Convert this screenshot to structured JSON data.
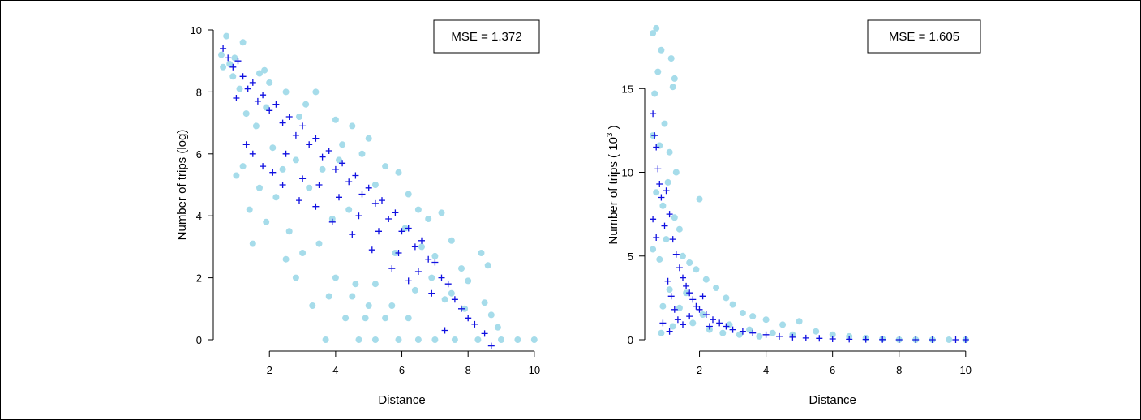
{
  "colors": {
    "observed": "#a6dcea",
    "predicted": "#1010e0",
    "axis": "#000000"
  },
  "chart_data": [
    {
      "type": "scatter",
      "xlabel": "Distance",
      "ylabel": "Number of trips (log)",
      "annotation": "MSE = 1.372",
      "xlim": [
        0.5,
        10.2
      ],
      "ylim": [
        0,
        10
      ],
      "xticks": [
        2,
        4,
        6,
        8,
        10
      ],
      "yticks": [
        0,
        2,
        4,
        6,
        8,
        10
      ],
      "series": [
        {
          "marker": "circle",
          "points": [
            [
              0.55,
              9.2
            ],
            [
              0.7,
              9.8
            ],
            [
              1.2,
              9.6
            ],
            [
              0.95,
              9.1
            ],
            [
              1.7,
              8.6
            ],
            [
              2.0,
              8.3
            ],
            [
              1.85,
              8.7
            ],
            [
              2.5,
              8.0
            ],
            [
              3.1,
              7.6
            ],
            [
              3.4,
              8.0
            ],
            [
              2.9,
              7.2
            ],
            [
              4.0,
              7.1
            ],
            [
              4.5,
              6.9
            ],
            [
              4.2,
              6.3
            ],
            [
              5.0,
              6.5
            ],
            [
              4.8,
              6.0
            ],
            [
              5.5,
              5.6
            ],
            [
              5.9,
              5.4
            ],
            [
              5.2,
              5.0
            ],
            [
              6.2,
              4.7
            ],
            [
              6.5,
              4.2
            ],
            [
              6.8,
              3.9
            ],
            [
              7.2,
              4.1
            ],
            [
              7.5,
              3.2
            ],
            [
              6.1,
              3.6
            ],
            [
              7.0,
              2.7
            ],
            [
              7.8,
              2.3
            ],
            [
              8.4,
              2.8
            ],
            [
              8.6,
              2.4
            ],
            [
              8.0,
              1.9
            ],
            [
              7.5,
              1.5
            ],
            [
              8.5,
              1.2
            ],
            [
              8.7,
              0.8
            ],
            [
              9.0,
              0
            ],
            [
              9.5,
              0
            ],
            [
              10.0,
              0
            ],
            [
              8.3,
              0
            ],
            [
              7.6,
              0
            ],
            [
              7.0,
              0
            ],
            [
              6.5,
              0
            ],
            [
              5.9,
              0
            ],
            [
              5.2,
              0
            ],
            [
              4.7,
              0
            ],
            [
              3.7,
              0
            ],
            [
              6.2,
              0.7
            ],
            [
              5.5,
              0.7
            ],
            [
              4.9,
              0.7
            ],
            [
              4.3,
              0.7
            ],
            [
              5.7,
              1.1
            ],
            [
              5.0,
              1.1
            ],
            [
              4.5,
              1.4
            ],
            [
              3.8,
              1.4
            ],
            [
              5.2,
              1.8
            ],
            [
              4.6,
              1.8
            ],
            [
              4.0,
              2.0
            ],
            [
              3.3,
              1.1
            ],
            [
              2.8,
              2.0
            ],
            [
              2.5,
              2.6
            ],
            [
              1.5,
              3.1
            ],
            [
              1.9,
              3.8
            ],
            [
              1.2,
              5.6
            ],
            [
              1.0,
              5.3
            ],
            [
              1.4,
              4.2
            ],
            [
              1.7,
              4.9
            ],
            [
              2.2,
              4.6
            ],
            [
              2.6,
              3.5
            ],
            [
              3.0,
              2.8
            ],
            [
              3.5,
              3.1
            ],
            [
              2.4,
              5.5
            ],
            [
              3.9,
              3.9
            ],
            [
              4.4,
              4.2
            ],
            [
              3.2,
              4.9
            ],
            [
              2.1,
              6.2
            ],
            [
              2.8,
              5.8
            ],
            [
              1.6,
              6.9
            ],
            [
              1.3,
              7.3
            ],
            [
              1.9,
              7.5
            ],
            [
              3.6,
              5.5
            ],
            [
              4.1,
              5.8
            ],
            [
              6.9,
              2.0
            ],
            [
              7.3,
              1.3
            ],
            [
              6.4,
              1.6
            ],
            [
              0.6,
              8.8
            ],
            [
              0.9,
              8.5
            ],
            [
              1.1,
              8.1
            ],
            [
              0.8,
              8.9
            ],
            [
              5.8,
              2.8
            ],
            [
              6.6,
              3.0
            ],
            [
              7.9,
              1.0
            ],
            [
              8.9,
              0.4
            ]
          ]
        },
        {
          "marker": "plus",
          "points": [
            [
              0.6,
              9.4
            ],
            [
              0.75,
              9.1
            ],
            [
              0.9,
              8.8
            ],
            [
              1.05,
              9.0
            ],
            [
              1.2,
              8.5
            ],
            [
              1.35,
              8.1
            ],
            [
              1.5,
              8.3
            ],
            [
              1.65,
              7.7
            ],
            [
              1.8,
              7.9
            ],
            [
              2.0,
              7.4
            ],
            [
              2.2,
              7.6
            ],
            [
              2.4,
              7.0
            ],
            [
              2.6,
              7.2
            ],
            [
              2.8,
              6.6
            ],
            [
              3.0,
              6.9
            ],
            [
              3.2,
              6.3
            ],
            [
              3.4,
              6.5
            ],
            [
              3.6,
              5.9
            ],
            [
              3.8,
              6.1
            ],
            [
              4.0,
              5.5
            ],
            [
              4.2,
              5.7
            ],
            [
              4.4,
              5.1
            ],
            [
              4.6,
              5.3
            ],
            [
              4.8,
              4.7
            ],
            [
              5.0,
              4.9
            ],
            [
              5.2,
              4.4
            ],
            [
              5.4,
              4.5
            ],
            [
              5.6,
              3.9
            ],
            [
              5.8,
              4.1
            ],
            [
              6.0,
              3.5
            ],
            [
              6.2,
              3.6
            ],
            [
              6.4,
              3.0
            ],
            [
              6.6,
              3.2
            ],
            [
              6.8,
              2.6
            ],
            [
              7.0,
              2.5
            ],
            [
              7.2,
              2.0
            ],
            [
              7.4,
              1.8
            ],
            [
              7.6,
              1.3
            ],
            [
              7.8,
              1.0
            ],
            [
              8.0,
              0.7
            ],
            [
              8.2,
              0.5
            ],
            [
              8.5,
              0.2
            ],
            [
              8.7,
              -0.2
            ],
            [
              7.3,
              0.3
            ],
            [
              6.9,
              1.5
            ],
            [
              1.3,
              6.3
            ],
            [
              1.5,
              6.0
            ],
            [
              1.8,
              5.6
            ],
            [
              2.1,
              5.4
            ],
            [
              2.4,
              5.0
            ],
            [
              2.9,
              4.5
            ],
            [
              3.4,
              4.3
            ],
            [
              3.9,
              3.8
            ],
            [
              4.5,
              3.4
            ],
            [
              5.1,
              2.9
            ],
            [
              5.7,
              2.3
            ],
            [
              6.2,
              1.9
            ],
            [
              1.0,
              7.8
            ],
            [
              2.5,
              6.0
            ],
            [
              3.0,
              5.2
            ],
            [
              3.5,
              5.0
            ],
            [
              4.1,
              4.6
            ],
            [
              4.7,
              4.0
            ],
            [
              5.3,
              3.5
            ],
            [
              5.9,
              2.8
            ],
            [
              6.5,
              2.2
            ]
          ]
        }
      ]
    },
    {
      "type": "scatter",
      "xlabel": "Distance",
      "ylabel": "Number of trips ( 10",
      "ylabel_superscript": "3",
      "ylabel_close": " )",
      "annotation": "MSE = 1.605",
      "xlim": [
        0.5,
        10.2
      ],
      "ylim": [
        0,
        18.5
      ],
      "xticks": [
        2,
        4,
        6,
        8,
        10
      ],
      "yticks": [
        0,
        5,
        10,
        15
      ],
      "series": [
        {
          "marker": "circle",
          "points": [
            [
              0.6,
              18.3
            ],
            [
              0.7,
              18.6
            ],
            [
              0.85,
              17.3
            ],
            [
              0.75,
              16.0
            ],
            [
              0.65,
              14.7
            ],
            [
              1.15,
              16.8
            ],
            [
              1.25,
              15.6
            ],
            [
              1.2,
              15.1
            ],
            [
              0.95,
              12.9
            ],
            [
              0.6,
              12.2
            ],
            [
              0.8,
              11.6
            ],
            [
              1.1,
              11.2
            ],
            [
              1.3,
              10.0
            ],
            [
              1.05,
              9.4
            ],
            [
              0.7,
              8.8
            ],
            [
              0.9,
              8.0
            ],
            [
              1.25,
              7.3
            ],
            [
              1.4,
              6.6
            ],
            [
              1.0,
              6.0
            ],
            [
              0.6,
              5.4
            ],
            [
              0.8,
              4.8
            ],
            [
              1.5,
              5.0
            ],
            [
              1.7,
              4.6
            ],
            [
              2.0,
              8.4
            ],
            [
              1.9,
              4.2
            ],
            [
              2.2,
              3.6
            ],
            [
              2.5,
              3.1
            ],
            [
              2.8,
              2.5
            ],
            [
              3.0,
              2.1
            ],
            [
              3.3,
              1.6
            ],
            [
              3.6,
              1.4
            ],
            [
              4.0,
              1.2
            ],
            [
              4.5,
              0.9
            ],
            [
              5.0,
              1.1
            ],
            [
              5.5,
              0.5
            ],
            [
              6.0,
              0.3
            ],
            [
              6.5,
              0.2
            ],
            [
              7.0,
              0.1
            ],
            [
              7.5,
              0.05
            ],
            [
              8.0,
              0
            ],
            [
              8.5,
              0
            ],
            [
              9.0,
              0
            ],
            [
              9.5,
              0
            ],
            [
              10.0,
              0
            ],
            [
              1.1,
              3.0
            ],
            [
              1.4,
              1.9
            ],
            [
              1.8,
              1.0
            ],
            [
              2.3,
              0.6
            ],
            [
              2.7,
              0.4
            ],
            [
              3.2,
              0.3
            ],
            [
              3.8,
              0.2
            ],
            [
              0.9,
              2.0
            ],
            [
              1.6,
              2.8
            ],
            [
              2.1,
              1.5
            ],
            [
              1.2,
              0.8
            ],
            [
              0.85,
              0.4
            ],
            [
              2.9,
              0.9
            ],
            [
              3.5,
              0.6
            ],
            [
              4.2,
              0.4
            ],
            [
              4.8,
              0.3
            ]
          ]
        },
        {
          "marker": "plus",
          "points": [
            [
              0.6,
              13.5
            ],
            [
              0.65,
              12.2
            ],
            [
              0.7,
              11.5
            ],
            [
              0.75,
              10.2
            ],
            [
              0.8,
              9.3
            ],
            [
              0.85,
              8.5
            ],
            [
              0.6,
              7.2
            ],
            [
              0.7,
              6.1
            ],
            [
              0.95,
              6.8
            ],
            [
              1.0,
              8.9
            ],
            [
              1.1,
              7.5
            ],
            [
              1.2,
              6.0
            ],
            [
              1.3,
              5.1
            ],
            [
              1.4,
              4.3
            ],
            [
              1.5,
              3.7
            ],
            [
              1.6,
              3.2
            ],
            [
              1.7,
              2.8
            ],
            [
              1.8,
              2.4
            ],
            [
              1.9,
              2.0
            ],
            [
              2.0,
              1.8
            ],
            [
              2.2,
              1.5
            ],
            [
              2.4,
              1.2
            ],
            [
              2.6,
              1.0
            ],
            [
              2.8,
              0.8
            ],
            [
              3.0,
              0.6
            ],
            [
              3.3,
              0.5
            ],
            [
              3.6,
              0.4
            ],
            [
              4.0,
              0.3
            ],
            [
              4.4,
              0.2
            ],
            [
              4.8,
              0.15
            ],
            [
              5.2,
              0.1
            ],
            [
              5.6,
              0.08
            ],
            [
              6.0,
              0.05
            ],
            [
              6.5,
              0.03
            ],
            [
              7.0,
              0.02
            ],
            [
              7.5,
              0.01
            ],
            [
              8.0,
              0
            ],
            [
              8.5,
              0
            ],
            [
              9.0,
              0
            ],
            [
              9.7,
              0
            ],
            [
              10.0,
              0
            ],
            [
              1.05,
              3.5
            ],
            [
              1.15,
              2.6
            ],
            [
              1.25,
              1.8
            ],
            [
              1.35,
              1.2
            ],
            [
              1.5,
              0.9
            ],
            [
              1.7,
              1.4
            ],
            [
              2.1,
              2.6
            ],
            [
              2.3,
              0.8
            ],
            [
              1.1,
              0.5
            ],
            [
              0.9,
              1.0
            ]
          ]
        }
      ]
    }
  ]
}
